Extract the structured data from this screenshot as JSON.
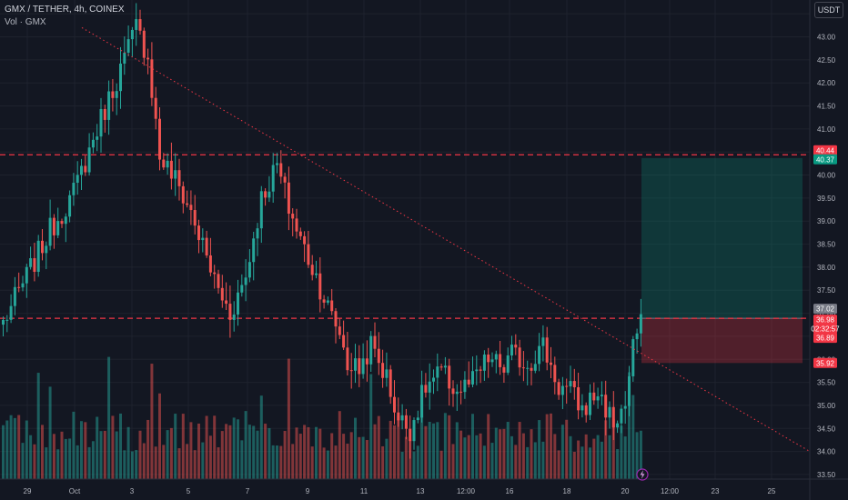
{
  "header": {
    "symbol_line": "GMX / TETHER, 4h, COINEX",
    "volume_line": "Vol · GMX",
    "currency_button": "USDT"
  },
  "colors": {
    "background": "#131722",
    "up": "#26a69a",
    "down": "#ef5350",
    "grid": "#1e222d",
    "level_line": "#f23645"
  },
  "chart_data": {
    "type": "candlestick",
    "interval": "4h",
    "y_axis": {
      "ticks": [
        "43.50",
        "43.00",
        "42.50",
        "42.00",
        "41.50",
        "41.00",
        "40.50",
        "40.00",
        "39.50",
        "39.00",
        "38.50",
        "38.00",
        "37.50",
        "37.00",
        "36.50",
        "36.00",
        "35.50",
        "35.00",
        "34.50",
        "34.00",
        "33.50"
      ],
      "range": [
        33.4,
        43.8
      ]
    },
    "x_axis": {
      "ticks": [
        "29",
        "Oct",
        "3",
        "5",
        "7",
        "9",
        "11",
        "13",
        "12:00",
        "16",
        "18",
        "20",
        "12:00",
        "23",
        "25"
      ]
    },
    "price_tags": [
      {
        "label": "40.44",
        "color": "#f23645"
      },
      {
        "label": "40.37",
        "color": "#089981"
      },
      {
        "label": "37.02",
        "color": "#787b86"
      },
      {
        "label": "36.98",
        "color": "#f23645"
      },
      {
        "label": "02:32:57",
        "color": "#f23645"
      },
      {
        "label": "36.89",
        "color": "#f23645"
      },
      {
        "label": "35.92",
        "color": "#f23645"
      }
    ],
    "horizontal_levels": [
      40.44,
      36.89
    ],
    "trendline": {
      "from": [
        0.35,
        43.2
      ],
      "to": [
        1,
        34.0
      ]
    },
    "position": {
      "entry": 36.89,
      "target": 40.37,
      "stop": 35.92
    },
    "anchors": [
      [
        0,
        36.8
      ],
      [
        6,
        37.8
      ],
      [
        12,
        38.8
      ],
      [
        18,
        39.6
      ],
      [
        24,
        41.0
      ],
      [
        30,
        42.3
      ],
      [
        34,
        43.2
      ],
      [
        37,
        42.6
      ],
      [
        40,
        40.4
      ],
      [
        44,
        39.9
      ],
      [
        48,
        39.2
      ],
      [
        52,
        38.2
      ],
      [
        55,
        37.5
      ],
      [
        58,
        37.0
      ],
      [
        62,
        37.8
      ],
      [
        66,
        39.5
      ],
      [
        70,
        40.2
      ],
      [
        73,
        39.3
      ],
      [
        76,
        38.6
      ],
      [
        80,
        37.8
      ],
      [
        84,
        36.9
      ],
      [
        86,
        36.6
      ],
      [
        88,
        35.9
      ],
      [
        91,
        35.8
      ],
      [
        94,
        36.3
      ],
      [
        98,
        35.6
      ],
      [
        101,
        34.7
      ],
      [
        104,
        34.5
      ],
      [
        108,
        35.4
      ],
      [
        112,
        35.7
      ],
      [
        116,
        35.3
      ],
      [
        120,
        35.5
      ],
      [
        124,
        36.0
      ],
      [
        128,
        35.8
      ],
      [
        130,
        36.1
      ],
      [
        134,
        35.9
      ],
      [
        138,
        36.3
      ],
      [
        142,
        35.4
      ],
      [
        145,
        35.3
      ],
      [
        148,
        34.9
      ],
      [
        152,
        35.3
      ],
      [
        156,
        34.6
      ],
      [
        159,
        35.0
      ],
      [
        161,
        36.2
      ],
      [
        163,
        36.98
      ]
    ],
    "last_price": 36.98
  }
}
